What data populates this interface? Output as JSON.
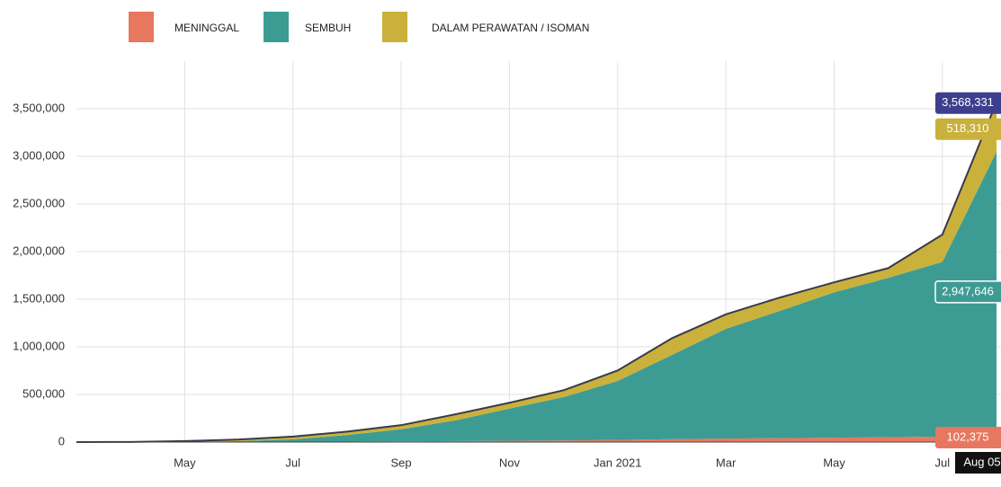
{
  "chart_data": {
    "type": "stacked_area",
    "categories": [
      null,
      null,
      "May",
      null,
      "Jul",
      null,
      "Sep",
      null,
      "Nov",
      null,
      "Jan 2021",
      null,
      "Mar",
      null,
      "May",
      null,
      "Jul",
      "Aug 05"
    ],
    "series": [
      {
        "name": "MENINGGAL",
        "color": "#e8775f",
        "values": [
          0,
          157,
          800,
          1613,
          2876,
          5193,
          7505,
          10856,
          13869,
          17081,
          22138,
          30277,
          36325,
          41054,
          45652,
          50723,
          57138,
          102375
        ],
        "value_labels": [
          null,
          null,
          null,
          null,
          null,
          null,
          null,
          null,
          null,
          null,
          null,
          null,
          null,
          null,
          null,
          null,
          null,
          "102,375"
        ]
      },
      {
        "name": "SEMBUH",
        "color": "#3c9c93",
        "values": [
          0,
          81,
          1591,
          7637,
          25595,
          68975,
          127083,
          217192,
          336987,
          454879,
          619446,
          883682,
          1151915,
          1336638,
          1526074,
          1673841,
          1834433,
          2947646
        ],
        "value_labels": [
          null,
          null,
          null,
          null,
          null,
          null,
          null,
          null,
          null,
          null,
          null,
          null,
          null,
          null,
          null,
          null,
          null,
          "2,947,646"
        ]
      },
      {
        "name": "DALAM PERAWATAN / ISOMAN",
        "color": "#c9b13c",
        "values": [
          0,
          1439,
          8160,
          17690,
          29299,
          35768,
          42983,
          63134,
          61928,
          72015,
          109686,
          175349,
          153074,
          140162,
          105548,
          101963,
          286701,
          518310
        ],
        "value_labels": [
          null,
          null,
          null,
          null,
          null,
          null,
          null,
          null,
          null,
          null,
          null,
          null,
          null,
          null,
          null,
          null,
          null,
          "518,310"
        ]
      }
    ],
    "total_label": "3,568,331",
    "ylim": [
      0,
      4000000
    ],
    "yticks": [
      0,
      {
        "value": 500000,
        "label": "500,000"
      },
      {
        "value": 1000000,
        "label": "1,000,000"
      },
      {
        "value": 1500000,
        "label": "1,500,000"
      },
      {
        "value": 2000000,
        "label": "2,000,000"
      },
      {
        "value": 2500000,
        "label": "2,500,000"
      },
      {
        "value": 3000000,
        "label": "3,000,000"
      },
      {
        "value": 3500000,
        "label": "3,500,000"
      }
    ],
    "grid": true
  }
}
